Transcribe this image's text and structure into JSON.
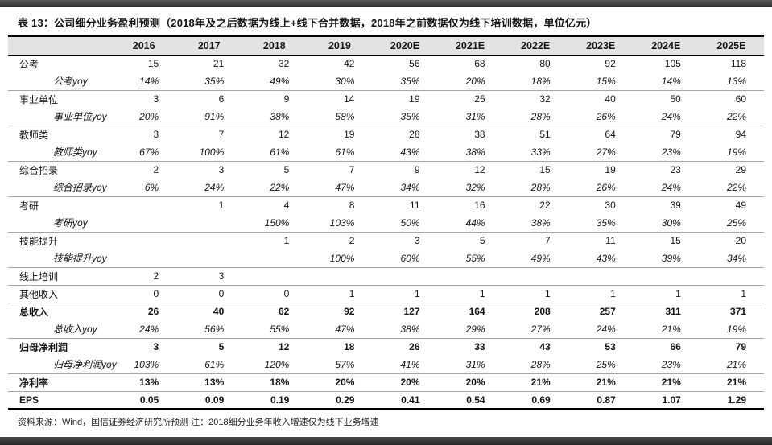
{
  "title": "表 13：公司细分业务盈利预测（2018年及之后数据为线上+线下合并数据，2018年之前数据仅为线下培训数据，单位亿元）",
  "footer": "资料来源：Wind，国信证券经济研究所预测  注：2018细分业务年收入增速仅为线下业务增速",
  "colors": {
    "header_bg": "#e3e3e3",
    "window_bar": "#3a3a3a",
    "separator": "#a6a6a6",
    "table_border": "#000000"
  },
  "table": {
    "columns": [
      "",
      "2016",
      "2017",
      "2018",
      "2019",
      "2020E",
      "2021E",
      "2022E",
      "2023E",
      "2024E",
      "2025E"
    ],
    "rows": [
      {
        "label": "公考",
        "style": "normal",
        "sep": false,
        "values": [
          "15",
          "21",
          "32",
          "42",
          "56",
          "68",
          "80",
          "92",
          "105",
          "118"
        ]
      },
      {
        "label": "公考yoy",
        "style": "yoy",
        "sep": true,
        "values": [
          "14%",
          "35%",
          "49%",
          "30%",
          "35%",
          "20%",
          "18%",
          "15%",
          "14%",
          "13%"
        ]
      },
      {
        "label": "事业单位",
        "style": "normal",
        "sep": false,
        "values": [
          "3",
          "6",
          "9",
          "14",
          "19",
          "25",
          "32",
          "40",
          "50",
          "60"
        ]
      },
      {
        "label": "事业单位yoy",
        "style": "yoy",
        "sep": true,
        "values": [
          "20%",
          "91%",
          "38%",
          "58%",
          "35%",
          "31%",
          "28%",
          "26%",
          "24%",
          "22%"
        ]
      },
      {
        "label": "教师类",
        "style": "normal",
        "sep": false,
        "values": [
          "3",
          "7",
          "12",
          "19",
          "28",
          "38",
          "51",
          "64",
          "79",
          "94"
        ]
      },
      {
        "label": "教师类yoy",
        "style": "yoy",
        "sep": true,
        "values": [
          "67%",
          "100%",
          "61%",
          "61%",
          "43%",
          "38%",
          "33%",
          "27%",
          "23%",
          "19%"
        ]
      },
      {
        "label": "综合招录",
        "style": "normal",
        "sep": false,
        "values": [
          "2",
          "3",
          "5",
          "7",
          "9",
          "12",
          "15",
          "19",
          "23",
          "29"
        ]
      },
      {
        "label": "综合招录yoy",
        "style": "yoy",
        "sep": true,
        "values": [
          "6%",
          "24%",
          "22%",
          "47%",
          "34%",
          "32%",
          "28%",
          "26%",
          "24%",
          "22%"
        ]
      },
      {
        "label": "考研",
        "style": "normal",
        "sep": false,
        "values": [
          "",
          "1",
          "4",
          "8",
          "11",
          "16",
          "22",
          "30",
          "39",
          "49"
        ]
      },
      {
        "label": "考研yoy",
        "style": "yoy",
        "sep": true,
        "values": [
          "",
          "",
          "150%",
          "103%",
          "50%",
          "44%",
          "38%",
          "35%",
          "30%",
          "25%"
        ]
      },
      {
        "label": "技能提升",
        "style": "normal",
        "sep": false,
        "values": [
          "",
          "",
          "1",
          "2",
          "3",
          "5",
          "7",
          "11",
          "15",
          "20"
        ]
      },
      {
        "label": "技能提升yoy",
        "style": "yoy",
        "sep": true,
        "values": [
          "",
          "",
          "",
          "100%",
          "60%",
          "55%",
          "49%",
          "43%",
          "39%",
          "34%"
        ]
      },
      {
        "label": "线上培训",
        "style": "normal",
        "sep": true,
        "values": [
          "2",
          "3",
          "",
          "",
          "",
          "",
          "",
          "",
          "",
          ""
        ]
      },
      {
        "label": "其他收入",
        "style": "normal",
        "sep": true,
        "values": [
          "0",
          "0",
          "0",
          "1",
          "1",
          "1",
          "1",
          "1",
          "1",
          "1"
        ]
      },
      {
        "label": "总收入",
        "style": "bold",
        "sep": false,
        "values": [
          "26",
          "40",
          "62",
          "92",
          "127",
          "164",
          "208",
          "257",
          "311",
          "371"
        ]
      },
      {
        "label": "总收入yoy",
        "style": "yoy",
        "sep": true,
        "values": [
          "24%",
          "56%",
          "55%",
          "47%",
          "38%",
          "29%",
          "27%",
          "24%",
          "21%",
          "19%"
        ]
      },
      {
        "label": "归母净利润",
        "style": "bold",
        "sep": false,
        "values": [
          "3",
          "5",
          "12",
          "18",
          "26",
          "33",
          "43",
          "53",
          "66",
          "79"
        ]
      },
      {
        "label": "归母净利润yoy",
        "style": "yoy",
        "sep": true,
        "values": [
          "103%",
          "61%",
          "120%",
          "57%",
          "41%",
          "31%",
          "28%",
          "25%",
          "23%",
          "21%"
        ]
      },
      {
        "label": "净利率",
        "style": "bold",
        "sep": true,
        "values": [
          "13%",
          "13%",
          "18%",
          "20%",
          "20%",
          "20%",
          "21%",
          "21%",
          "21%",
          "21%"
        ]
      },
      {
        "label": "EPS",
        "style": "bold",
        "sep": false,
        "values": [
          "0.05",
          "0.09",
          "0.19",
          "0.29",
          "0.41",
          "0.54",
          "0.69",
          "0.87",
          "1.07",
          "1.29"
        ]
      }
    ]
  }
}
